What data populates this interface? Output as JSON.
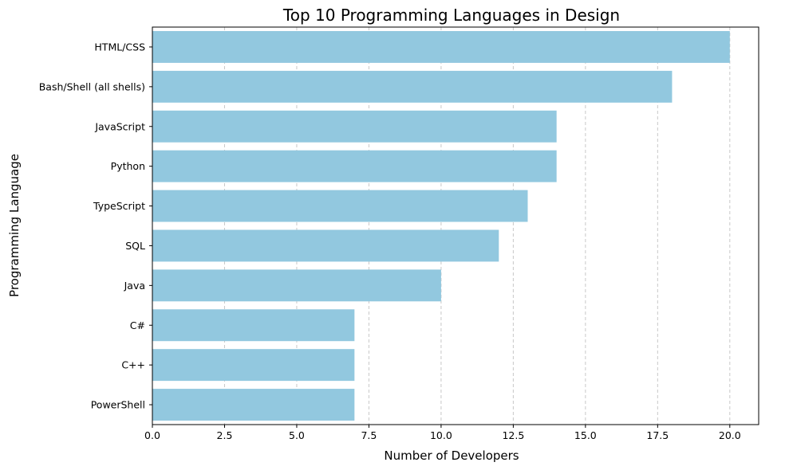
{
  "chart_data": {
    "type": "bar",
    "orientation": "horizontal",
    "title": "Top 10 Programming Languages in Design",
    "xlabel": "Number of Developers",
    "ylabel": "Programming Language",
    "categories": [
      "HTML/CSS",
      "Bash/Shell (all shells)",
      "JavaScript",
      "Python",
      "TypeScript",
      "SQL",
      "Java",
      "C#",
      "C++",
      "PowerShell"
    ],
    "values": [
      20,
      18,
      14,
      14,
      13,
      12,
      10,
      7,
      7,
      7
    ],
    "xlim": [
      0,
      21
    ],
    "xticks": [
      "0.0",
      "2.5",
      "5.0",
      "7.5",
      "10.0",
      "12.5",
      "15.0",
      "17.5",
      "20.0"
    ],
    "grid": "x-axis dashed",
    "bar_color": "#92c8df",
    "grid_color": "#c8c8c8"
  }
}
